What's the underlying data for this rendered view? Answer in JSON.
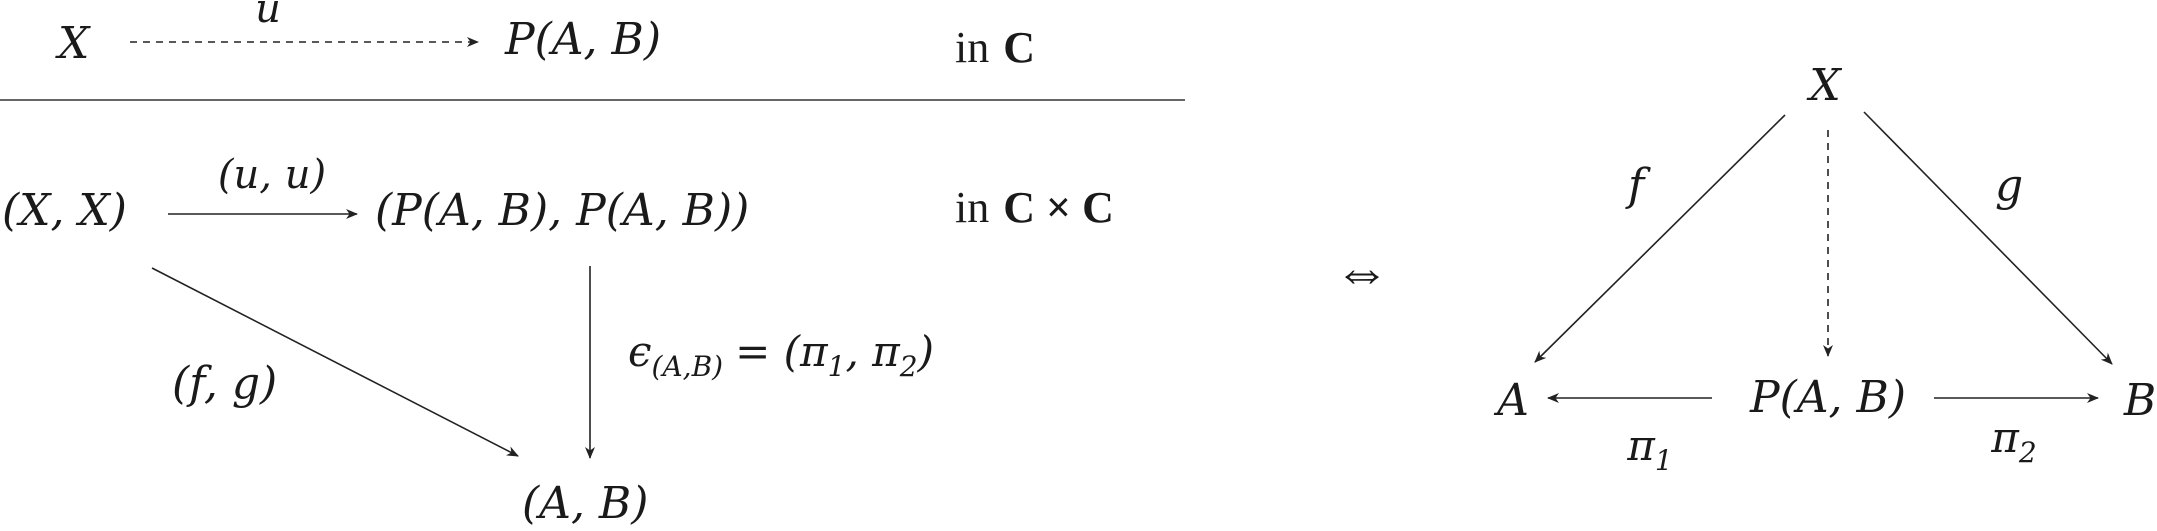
{
  "top": {
    "source": "X",
    "target": "P(A, B)",
    "arrow_label": "u",
    "category_prefix": "in",
    "category": "C"
  },
  "middle": {
    "source": "(X, X)",
    "target": "(P(A, B), P(A, B))",
    "arrow_label": "(u, u)",
    "category_prefix": "in",
    "category": "C × C"
  },
  "bottom": {
    "node": "(A, B)",
    "diag_label": "(f, g)",
    "counit_symbol": "ϵ",
    "counit_subscript": "(A,B)",
    "counit_rhs": "= (π",
    "pi1_sub": "1",
    "sep": ", π",
    "pi2_sub": "2",
    "close": ")"
  },
  "iff": "⇔",
  "triangle": {
    "apex": "X",
    "left": "A",
    "center": "P(A, B)",
    "right": "B",
    "f_label": "f",
    "g_label": "g",
    "pi1": "π",
    "pi1_sub": "1",
    "pi2": "π",
    "pi2_sub": "2"
  }
}
